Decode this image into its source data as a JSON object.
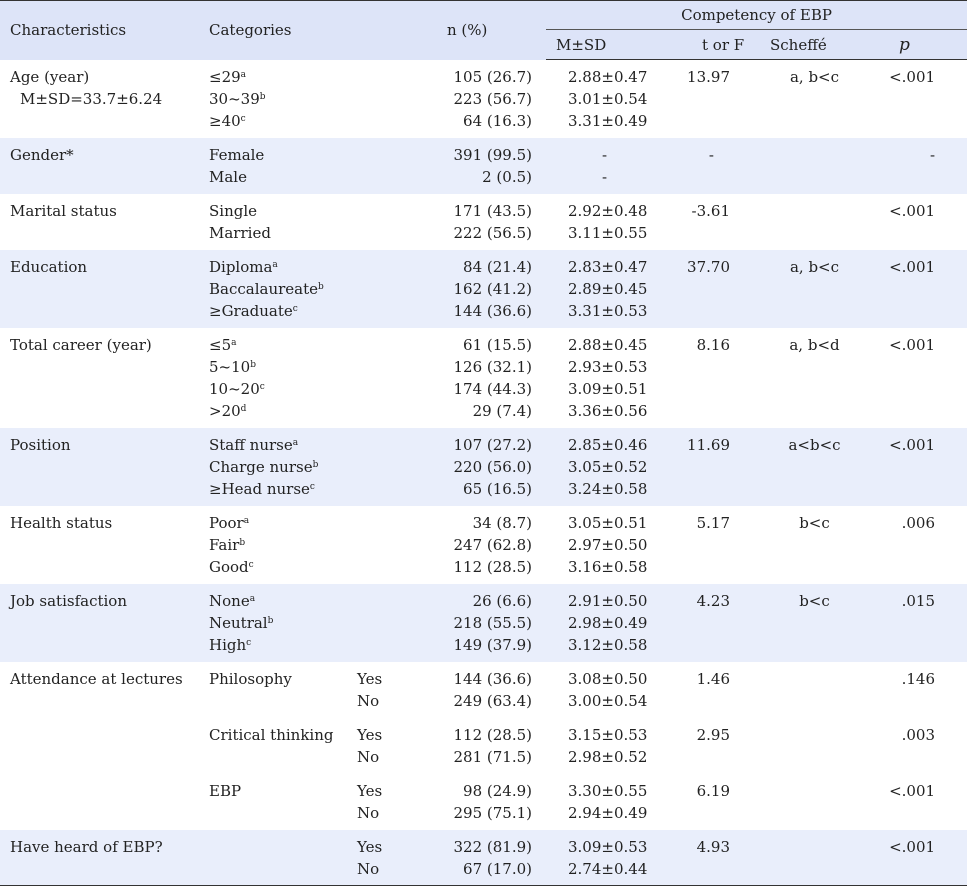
{
  "header": {
    "characteristics": "Characteristics",
    "categories": "Categories",
    "n_percent": "n (%)",
    "competency": "Competency of EBP",
    "msd": "M±SD",
    "t_or_f": "t or F",
    "scheffe": "Scheffé",
    "p": "p"
  },
  "rows": {
    "age": {
      "label": "Age (year)",
      "sublabel": "M±SD=33.7±6.24",
      "cats": [
        "≤29",
        "30~39",
        "≥40"
      ],
      "sups": [
        "a",
        "b",
        "c"
      ],
      "n": [
        "105 (26.7)",
        "223 (56.7)",
        "64 (16.3)"
      ],
      "msd": [
        "2.88±0.47",
        "3.01±0.54",
        "3.31±0.49"
      ],
      "t": "13.97",
      "scheffe": "a, b<c",
      "p": "<.001"
    },
    "gender": {
      "label": "Gender*",
      "cats": [
        "Female",
        "Male"
      ],
      "n": [
        "391 (99.5)",
        "2 (0.5)"
      ],
      "msd": [
        "-",
        "-"
      ],
      "t": "-",
      "scheffe": "",
      "p": "-"
    },
    "marital": {
      "label": "Marital status",
      "cats": [
        "Single",
        "Married"
      ],
      "n": [
        "171 (43.5)",
        "222 (56.5)"
      ],
      "msd": [
        "2.92±0.48",
        "3.11±0.55"
      ],
      "t": "-3.61",
      "scheffe": "",
      "p": "<.001"
    },
    "education": {
      "label": "Education",
      "cats": [
        "Diploma",
        "Baccalaureate",
        "≥Graduate"
      ],
      "sups": [
        "a",
        "b",
        "c"
      ],
      "n": [
        "84 (21.4)",
        "162 (41.2)",
        "144 (36.6)"
      ],
      "msd": [
        "2.83±0.47",
        "2.89±0.45",
        "3.31±0.53"
      ],
      "t": "37.70",
      "scheffe": "a, b<c",
      "p": "<.001"
    },
    "career": {
      "label": "Total career (year)",
      "cats": [
        "≤5",
        "5~10",
        "10~20",
        ">20"
      ],
      "sups": [
        "a",
        "b",
        "c",
        "d"
      ],
      "n": [
        "61 (15.5)",
        "126 (32.1)",
        "174 (44.3)",
        "29 (7.4)"
      ],
      "msd": [
        "2.88±0.45",
        "2.93±0.53",
        "3.09±0.51",
        "3.36±0.56"
      ],
      "t": "8.16",
      "scheffe": "a, b<d",
      "p": "<.001"
    },
    "position": {
      "label": "Position",
      "cats": [
        "Staff nurse",
        "Charge nurse",
        "≥Head nurse"
      ],
      "sups": [
        "a",
        "b",
        "c"
      ],
      "n": [
        "107 (27.2)",
        "220 (56.0)",
        "65 (16.5)"
      ],
      "msd": [
        "2.85±0.46",
        "3.05±0.52",
        "3.24±0.58"
      ],
      "t": "11.69",
      "scheffe": "a<b<c",
      "p": "<.001"
    },
    "health": {
      "label": "Health status",
      "cats": [
        "Poor",
        "Fair",
        "Good"
      ],
      "sups": [
        "a",
        "b",
        "c"
      ],
      "n": [
        "34 (8.7)",
        "247 (62.8)",
        "112 (28.5)"
      ],
      "msd": [
        "3.05±0.51",
        "2.97±0.50",
        "3.16±0.58"
      ],
      "t": "5.17",
      "scheffe": "b<c",
      "p": ".006"
    },
    "job": {
      "label": "Job satisfaction",
      "cats": [
        "None",
        "Neutral",
        "High"
      ],
      "sups": [
        "a",
        "b",
        "c"
      ],
      "n": [
        "26 (6.6)",
        "218 (55.5)",
        "149 (37.9)"
      ],
      "msd": [
        "2.91±0.50",
        "2.98±0.49",
        "3.12±0.58"
      ],
      "t": "4.23",
      "scheffe": "b<c",
      "p": ".015"
    },
    "lectures": {
      "label": "Attendance at lectures",
      "items": [
        {
          "cat": "Philosophy",
          "opts": [
            "Yes",
            "No"
          ],
          "n": [
            "144 (36.6)",
            "249 (63.4)"
          ],
          "msd": [
            "3.08±0.50",
            "3.00±0.54"
          ],
          "t": "1.46",
          "p": ".146"
        },
        {
          "cat": "Critical thinking",
          "opts": [
            "Yes",
            "No"
          ],
          "n": [
            "112 (28.5)",
            "281 (71.5)"
          ],
          "msd": [
            "3.15±0.53",
            "2.98±0.52"
          ],
          "t": "2.95",
          "p": ".003"
        },
        {
          "cat": "EBP",
          "opts": [
            "Yes",
            "No"
          ],
          "n": [
            "98 (24.9)",
            "295 (75.1)"
          ],
          "msd": [
            "3.30±0.55",
            "2.94±0.49"
          ],
          "t": "6.19",
          "p": "<.001"
        }
      ]
    },
    "heard": {
      "label": "Have heard of EBP?",
      "opts": [
        "Yes",
        "No"
      ],
      "n": [
        "322 (81.9)",
        "67 (17.0)"
      ],
      "msd": [
        "3.09±0.53",
        "2.74±0.44"
      ],
      "t": "4.93",
      "p": "<.001"
    }
  }
}
